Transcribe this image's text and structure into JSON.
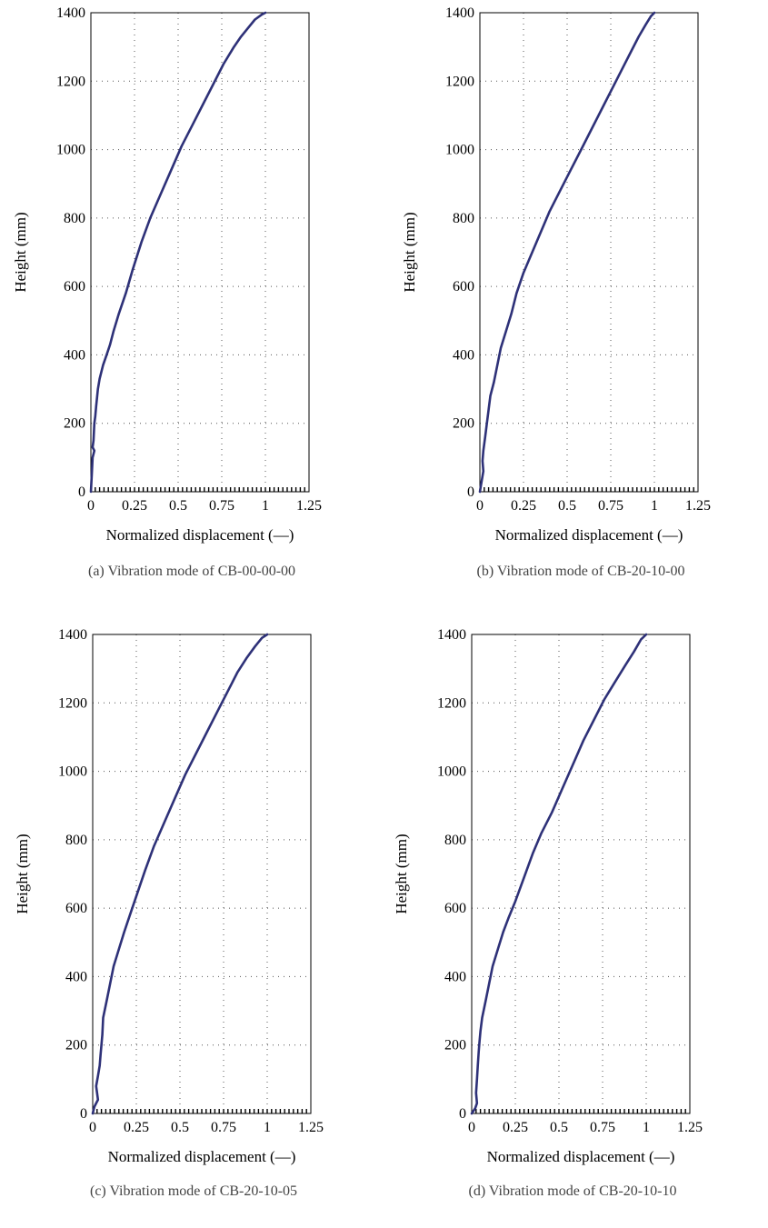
{
  "figure": {
    "captions": [
      "(a)  Vibration mode of CB-00-00-00",
      "(b)  Vibration mode of CB-20-10-00",
      "(c)  Vibration mode of CB-20-10-05",
      "(d)  Vibration mode of CB-20-10-10"
    ]
  },
  "colors": {
    "line": "#2e3178",
    "grid": "#555555",
    "axis": "#000000"
  },
  "chart_data": [
    {
      "type": "line",
      "xlabel": "Normalized displacement (—)",
      "ylabel": "Height (mm)",
      "xlim": [
        0,
        1.25
      ],
      "ylim": [
        0,
        1400
      ],
      "xticks": [
        "0",
        "0.25",
        "0.5",
        "0.75",
        "1",
        "1.25"
      ],
      "yticks": [
        "0",
        "200",
        "400",
        "600",
        "800",
        "1000",
        "1200",
        "1400"
      ],
      "grid": true,
      "series": [
        {
          "x": [
            0,
            0.005,
            0.01,
            0.02,
            0.01,
            0.015,
            0.02,
            0.025,
            0.03,
            0.04,
            0.05,
            0.07,
            0.09,
            0.11,
            0.13,
            0.16,
            0.2,
            0.24,
            0.29,
            0.34,
            0.4,
            0.46,
            0.52,
            0.58,
            0.64,
            0.7,
            0.76,
            0.82,
            0.86,
            0.9,
            0.94,
            0.98,
            1.0
          ],
          "y": [
            0,
            50,
            100,
            120,
            130,
            150,
            200,
            220,
            250,
            300,
            330,
            370,
            400,
            430,
            470,
            520,
            580,
            650,
            730,
            800,
            870,
            940,
            1010,
            1070,
            1130,
            1190,
            1250,
            1300,
            1330,
            1355,
            1380,
            1395,
            1400
          ]
        }
      ]
    },
    {
      "type": "line",
      "xlabel": "Normalized displacement (—)",
      "ylabel": "Height (mm)",
      "xlim": [
        0,
        1.25
      ],
      "ylim": [
        0,
        1400
      ],
      "xticks": [
        "0",
        "0.25",
        "0.5",
        "0.75",
        "1",
        "1.25"
      ],
      "yticks": [
        "0",
        "200",
        "400",
        "600",
        "800",
        "1000",
        "1200",
        "1400"
      ],
      "grid": true,
      "series": [
        {
          "x": [
            0,
            0.01,
            0.02,
            0.015,
            0.02,
            0.03,
            0.04,
            0.05,
            0.06,
            0.08,
            0.1,
            0.12,
            0.15,
            0.18,
            0.21,
            0.25,
            0.3,
            0.35,
            0.4,
            0.46,
            0.52,
            0.58,
            0.64,
            0.7,
            0.76,
            0.82,
            0.87,
            0.91,
            0.95,
            0.98,
            1.0
          ],
          "y": [
            0,
            30,
            60,
            90,
            120,
            160,
            200,
            240,
            280,
            320,
            370,
            420,
            470,
            520,
            580,
            640,
            700,
            760,
            820,
            880,
            940,
            1000,
            1060,
            1120,
            1180,
            1240,
            1290,
            1330,
            1365,
            1390,
            1400
          ]
        }
      ]
    },
    {
      "type": "line",
      "xlabel": "Normalized displacement (—)",
      "ylabel": "Height (mm)",
      "xlim": [
        0,
        1.25
      ],
      "ylim": [
        0,
        1400
      ],
      "xticks": [
        "0",
        "0.25",
        "0.5",
        "0.75",
        "1",
        "1.25"
      ],
      "yticks": [
        "0",
        "200",
        "400",
        "600",
        "800",
        "1000",
        "1200",
        "1400"
      ],
      "grid": true,
      "series": [
        {
          "x": [
            0,
            0.01,
            0.03,
            0.02,
            0.03,
            0.04,
            0.045,
            0.05,
            0.055,
            0.06,
            0.08,
            0.1,
            0.12,
            0.15,
            0.18,
            0.22,
            0.26,
            0.3,
            0.35,
            0.41,
            0.47,
            0.53,
            0.6,
            0.66,
            0.72,
            0.78,
            0.83,
            0.88,
            0.93,
            0.97,
            1.0
          ],
          "y": [
            0,
            20,
            40,
            80,
            110,
            140,
            170,
            200,
            230,
            280,
            330,
            380,
            430,
            480,
            530,
            590,
            650,
            710,
            780,
            850,
            920,
            990,
            1060,
            1120,
            1180,
            1240,
            1290,
            1330,
            1365,
            1390,
            1400
          ]
        }
      ]
    },
    {
      "type": "line",
      "xlabel": "Normalized displacement (—)",
      "ylabel": "Height (mm)",
      "xlim": [
        0,
        1.25
      ],
      "ylim": [
        0,
        1400
      ],
      "xticks": [
        "0",
        "0.25",
        "0.5",
        "0.75",
        "1",
        "1.25"
      ],
      "yticks": [
        "0",
        "200",
        "400",
        "600",
        "800",
        "1000",
        "1200",
        "1400"
      ],
      "grid": true,
      "series": [
        {
          "x": [
            0,
            0.02,
            0.03,
            0.025,
            0.03,
            0.035,
            0.04,
            0.045,
            0.05,
            0.06,
            0.08,
            0.1,
            0.12,
            0.15,
            0.18,
            0.21,
            0.25,
            0.3,
            0.35,
            0.4,
            0.46,
            0.52,
            0.58,
            0.64,
            0.7,
            0.76,
            0.82,
            0.88,
            0.93,
            0.97,
            1.0
          ],
          "y": [
            0,
            15,
            30,
            60,
            100,
            140,
            180,
            210,
            240,
            280,
            330,
            380,
            430,
            480,
            530,
            570,
            620,
            690,
            760,
            820,
            880,
            950,
            1020,
            1090,
            1150,
            1210,
            1260,
            1310,
            1350,
            1385,
            1400
          ]
        }
      ]
    }
  ]
}
